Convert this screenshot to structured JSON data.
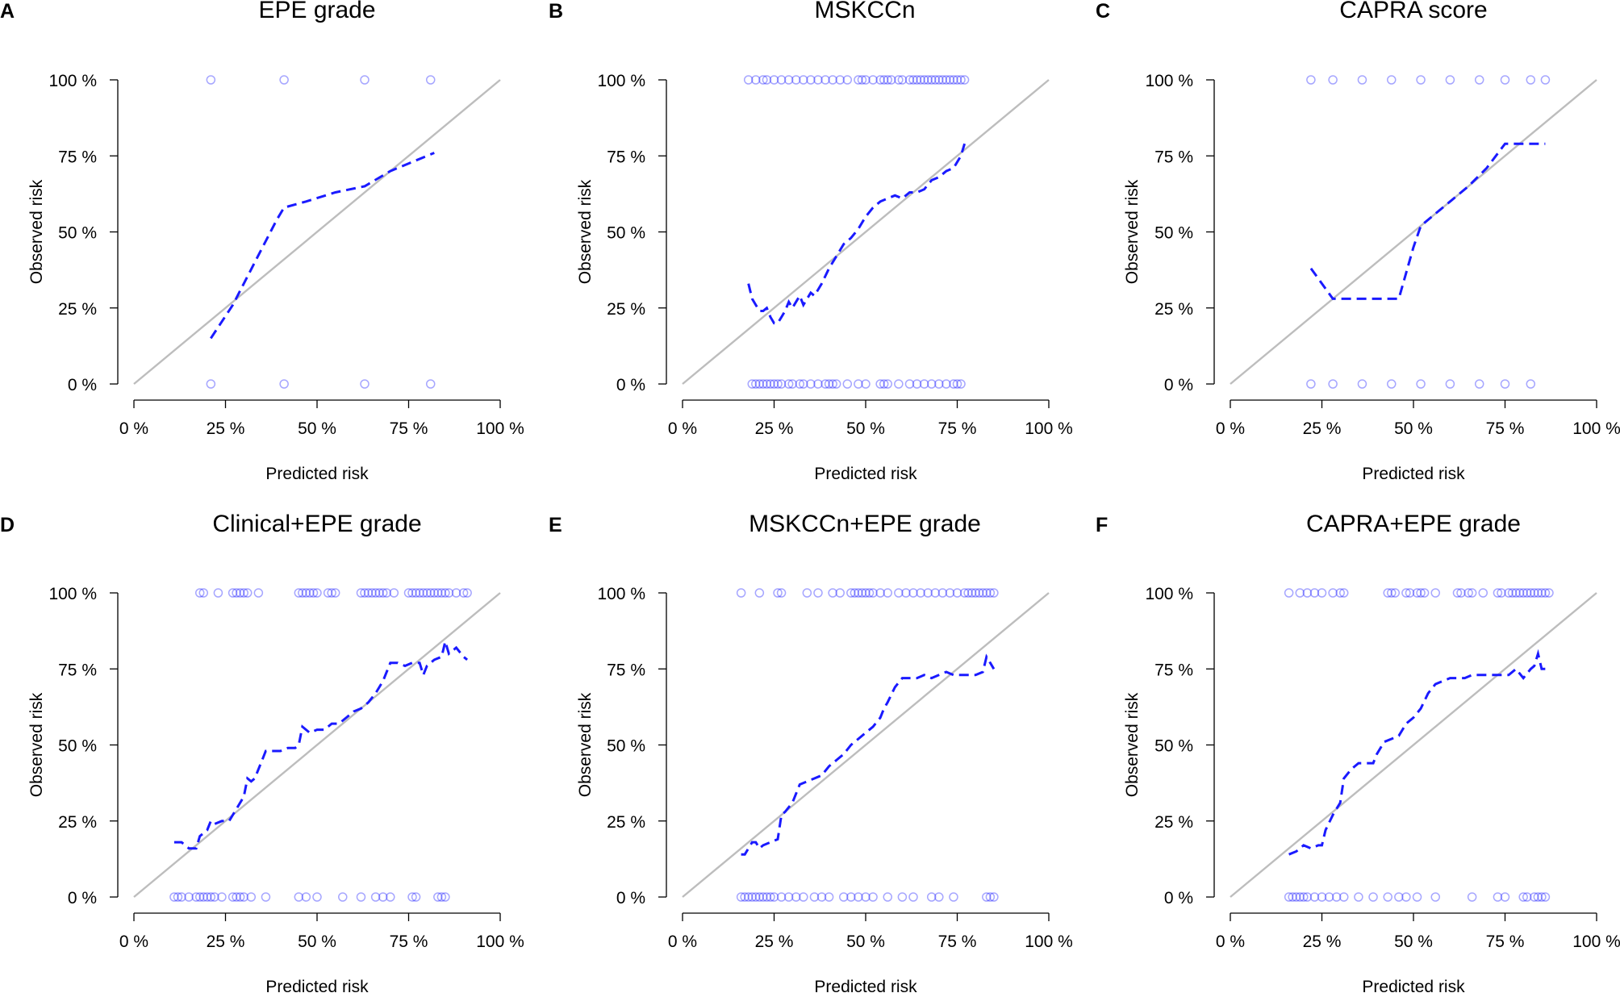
{
  "colors": {
    "calibration_curve": "#1a1aff",
    "points": "#0000ff",
    "ideal_line": "#bdbdbd",
    "axis": "#000000"
  },
  "chart_data": [
    {
      "panel": "A",
      "title": "EPE grade",
      "type": "scatter",
      "xlabel": "Predicted risk",
      "ylabel": "Observed risk",
      "xlim": [
        0,
        100
      ],
      "ylim": [
        0,
        100
      ],
      "xticks": [
        "0 %",
        "25 %",
        "50 %",
        "75 %",
        "100 %"
      ],
      "yticks": [
        "0 %",
        "25 %",
        "50 %",
        "75 %",
        "100 %"
      ],
      "reference_line": {
        "name": "ideal",
        "x": [
          0,
          100
        ],
        "y": [
          0,
          100
        ]
      },
      "points_observed_100": [
        21,
        41,
        63,
        81
      ],
      "points_observed_0": [
        21,
        41,
        63,
        81
      ],
      "calibration_curve": {
        "x": [
          21,
          27,
          33,
          39,
          41,
          47,
          55,
          63,
          70,
          76,
          82
        ],
        "y": [
          15,
          26,
          40,
          54,
          58,
          60,
          63,
          65,
          70,
          73,
          76
        ]
      }
    },
    {
      "panel": "B",
      "title": "MSKCCn",
      "type": "scatter",
      "xlabel": "Predicted risk",
      "ylabel": "Observed risk",
      "xlim": [
        0,
        100
      ],
      "ylim": [
        0,
        100
      ],
      "xticks": [
        "0 %",
        "25 %",
        "50 %",
        "75 %",
        "100 %"
      ],
      "yticks": [
        "0 %",
        "25 %",
        "50 %",
        "75 %",
        "100 %"
      ],
      "reference_line": {
        "name": "ideal",
        "x": [
          0,
          100
        ],
        "y": [
          0,
          100
        ]
      },
      "points_observed_100": [
        18,
        20,
        22,
        23,
        25,
        27,
        29,
        31,
        33,
        35,
        37,
        39,
        41,
        43,
        45,
        48,
        49,
        50,
        52,
        54,
        55,
        56,
        57,
        59,
        60,
        62,
        63,
        64,
        65,
        66,
        67,
        68,
        69,
        70,
        71,
        72,
        73,
        74,
        75,
        76,
        77
      ],
      "points_observed_0": [
        19,
        20,
        21,
        22,
        23,
        24,
        25,
        26,
        27,
        29,
        30,
        32,
        33,
        35,
        37,
        39,
        40,
        41,
        42,
        45,
        48,
        50,
        54,
        55,
        56,
        59,
        62,
        64,
        66,
        68,
        70,
        72,
        74,
        75,
        76
      ],
      "calibration_curve": {
        "x": [
          18,
          19,
          20,
          21,
          22,
          23,
          24,
          25,
          26,
          27,
          28,
          29,
          30,
          31,
          32,
          33,
          34,
          35,
          36,
          37,
          38,
          40,
          42,
          44,
          46,
          48,
          50,
          52,
          54,
          56,
          58,
          60,
          62,
          64,
          66,
          68,
          70,
          72,
          74,
          75,
          76,
          77
        ],
        "y": [
          33,
          28,
          26,
          24,
          24,
          25,
          22,
          20,
          20,
          22,
          24,
          27,
          25,
          27,
          29,
          26,
          28,
          30,
          29,
          31,
          33,
          38,
          42,
          46,
          48,
          51,
          55,
          58,
          60,
          61,
          62,
          61,
          63,
          63,
          64,
          67,
          68,
          70,
          71,
          73,
          75,
          79
        ]
      }
    },
    {
      "panel": "C",
      "title": "CAPRA score",
      "type": "scatter",
      "xlabel": "Predicted risk",
      "ylabel": "Observed risk",
      "xlim": [
        0,
        100
      ],
      "ylim": [
        0,
        100
      ],
      "xticks": [
        "0 %",
        "25 %",
        "50 %",
        "75 %",
        "100 %"
      ],
      "yticks": [
        "0 %",
        "25 %",
        "50 %",
        "75 %",
        "100 %"
      ],
      "reference_line": {
        "name": "ideal",
        "x": [
          0,
          100
        ],
        "y": [
          0,
          100
        ]
      },
      "points_observed_100": [
        22,
        28,
        36,
        44,
        52,
        60,
        68,
        75,
        82,
        86
      ],
      "points_observed_0": [
        22,
        28,
        36,
        44,
        52,
        60,
        68,
        75,
        82
      ],
      "calibration_curve": {
        "x": [
          22,
          28,
          36,
          44,
          46,
          50,
          52,
          56,
          60,
          65,
          70,
          75,
          80,
          86
        ],
        "y": [
          38,
          28,
          28,
          28,
          28,
          45,
          52,
          56,
          60,
          65,
          71,
          79,
          79,
          79
        ]
      }
    },
    {
      "panel": "D",
      "title": "Clinical+EPE grade",
      "type": "scatter",
      "xlabel": "Predicted risk",
      "ylabel": "Observed risk",
      "xlim": [
        0,
        100
      ],
      "ylim": [
        0,
        100
      ],
      "xticks": [
        "0 %",
        "25 %",
        "50 %",
        "75 %",
        "100 %"
      ],
      "yticks": [
        "0 %",
        "25 %",
        "50 %",
        "75 %",
        "100 %"
      ],
      "reference_line": {
        "name": "ideal",
        "x": [
          0,
          100
        ],
        "y": [
          0,
          100
        ]
      },
      "points_observed_100": [
        18,
        19,
        23,
        27,
        28,
        29,
        30,
        31,
        34,
        45,
        46,
        47,
        48,
        49,
        50,
        53,
        54,
        55,
        62,
        63,
        64,
        65,
        66,
        67,
        68,
        69,
        71,
        75,
        76,
        77,
        78,
        79,
        80,
        81,
        82,
        83,
        84,
        85,
        86,
        88,
        90,
        91
      ],
      "points_observed_0": [
        11,
        12,
        13,
        15,
        17,
        18,
        19,
        20,
        21,
        22,
        24,
        27,
        28,
        29,
        30,
        32,
        36,
        45,
        47,
        50,
        57,
        62,
        66,
        68,
        70,
        76,
        77,
        83,
        84,
        85
      ],
      "calibration_curve": {
        "x": [
          11,
          13,
          15,
          17,
          18,
          20,
          21,
          22,
          24,
          26,
          28,
          30,
          31,
          32,
          33,
          35,
          36,
          40,
          42,
          44,
          45,
          46,
          48,
          50,
          52,
          54,
          56,
          58,
          60,
          62,
          64,
          66,
          68,
          70,
          72,
          74,
          76,
          78,
          79,
          80,
          82,
          84,
          85,
          86,
          88,
          90,
          91
        ],
        "y": [
          18,
          18,
          16,
          16,
          20,
          22,
          25,
          24,
          25,
          25,
          29,
          33,
          39,
          38,
          39,
          45,
          48,
          48,
          49,
          49,
          50,
          56,
          54,
          55,
          55,
          57,
          57,
          59,
          61,
          62,
          64,
          67,
          71,
          77,
          77,
          76,
          77,
          77,
          73,
          76,
          78,
          79,
          84,
          80,
          82,
          79,
          78
        ]
      }
    },
    {
      "panel": "E",
      "title": "MSKCCn+EPE grade",
      "type": "scatter",
      "xlabel": "Predicted risk",
      "ylabel": "Observed risk",
      "xlim": [
        0,
        100
      ],
      "ylim": [
        0,
        100
      ],
      "xticks": [
        "0 %",
        "25 %",
        "50 %",
        "75 %",
        "100 %"
      ],
      "yticks": [
        "0 %",
        "25 %",
        "50 %",
        "75 %",
        "100 %"
      ],
      "reference_line": {
        "name": "ideal",
        "x": [
          0,
          100
        ],
        "y": [
          0,
          100
        ]
      },
      "points_observed_100": [
        16,
        21,
        26,
        27,
        34,
        37,
        41,
        43,
        46,
        47,
        48,
        49,
        50,
        51,
        52,
        54,
        56,
        59,
        61,
        63,
        65,
        67,
        69,
        71,
        73,
        75,
        77,
        78,
        79,
        80,
        81,
        82,
        83,
        84,
        85
      ],
      "points_observed_0": [
        16,
        17,
        18,
        19,
        20,
        21,
        22,
        23,
        24,
        25,
        27,
        29,
        31,
        33,
        36,
        38,
        40,
        44,
        46,
        48,
        50,
        52,
        56,
        60,
        63,
        68,
        70,
        74,
        83,
        84,
        85
      ],
      "calibration_curve": {
        "x": [
          16,
          17,
          18,
          19,
          20,
          21,
          22,
          24,
          26,
          27,
          28,
          30,
          32,
          34,
          36,
          38,
          40,
          42,
          44,
          46,
          48,
          50,
          52,
          54,
          55,
          56,
          58,
          60,
          62,
          64,
          66,
          68,
          70,
          72,
          74,
          76,
          78,
          80,
          82,
          83,
          84,
          85
        ],
        "y": [
          14,
          14,
          16,
          18,
          18,
          16,
          17,
          18,
          19,
          27,
          28,
          31,
          37,
          38,
          39,
          40,
          43,
          45,
          47,
          50,
          52,
          54,
          56,
          59,
          62,
          64,
          69,
          72,
          72,
          72,
          73,
          72,
          73,
          74,
          73,
          73,
          73,
          73,
          74,
          79,
          77,
          75
        ]
      }
    },
    {
      "panel": "F",
      "title": "CAPRA+EPE grade",
      "type": "scatter",
      "xlabel": "Predicted risk",
      "ylabel": "Observed risk",
      "xlim": [
        0,
        100
      ],
      "ylim": [
        0,
        100
      ],
      "xticks": [
        "0 %",
        "25 %",
        "50 %",
        "75 %",
        "100 %"
      ],
      "yticks": [
        "0 %",
        "25 %",
        "50 %",
        "75 %",
        "100 %"
      ],
      "reference_line": {
        "name": "ideal",
        "x": [
          0,
          100
        ],
        "y": [
          0,
          100
        ]
      },
      "points_observed_100": [
        16,
        19,
        21,
        23,
        25,
        28,
        30,
        31,
        43,
        44,
        45,
        48,
        49,
        51,
        52,
        53,
        56,
        62,
        63,
        65,
        66,
        69,
        73,
        74,
        76,
        77,
        78,
        79,
        80,
        81,
        82,
        83,
        84,
        85,
        86,
        87
      ],
      "points_observed_0": [
        16,
        17,
        18,
        19,
        20,
        21,
        23,
        25,
        27,
        29,
        31,
        35,
        39,
        43,
        46,
        48,
        51,
        56,
        66,
        73,
        75,
        80,
        81,
        83,
        84,
        85,
        86
      ],
      "calibration_curve": {
        "x": [
          16,
          18,
          20,
          22,
          24,
          25,
          26,
          28,
          30,
          31,
          33,
          35,
          37,
          39,
          40,
          42,
          44,
          46,
          47,
          48,
          50,
          52,
          54,
          56,
          58,
          60,
          62,
          64,
          66,
          68,
          70,
          72,
          74,
          76,
          78,
          80,
          82,
          83,
          84,
          85,
          87
        ],
        "y": [
          14,
          15,
          17,
          16,
          17,
          17,
          22,
          27,
          31,
          39,
          42,
          44,
          44,
          44,
          47,
          51,
          52,
          53,
          55,
          57,
          59,
          62,
          67,
          70,
          71,
          72,
          72,
          72,
          73,
          73,
          73,
          73,
          73,
          73,
          75,
          72,
          75,
          76,
          80,
          75,
          75
        ]
      }
    }
  ]
}
